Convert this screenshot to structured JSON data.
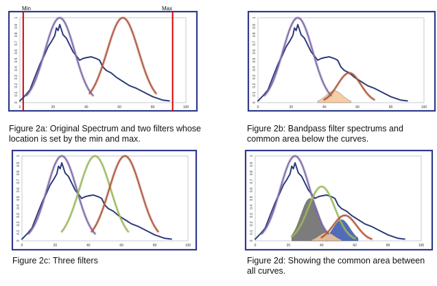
{
  "colors": {
    "frame": "#2e3a8c",
    "spectrum": "#2b3a7a",
    "filter_left": "#7f6aa8",
    "filter_middle": "#9ab85a",
    "filter_right": "#b0573c",
    "limit_line": "#d40000",
    "area_orange": "#f4c79a",
    "area_gray": "#6a6a6a",
    "area_blue": "#3a58b0"
  },
  "chart_data": [
    {
      "type": "line",
      "panel": "2a",
      "caption": "Figure 2a: Original Spectrum and two filters whose location is set by the min and max.",
      "min_label": "Min",
      "max_label": "Max",
      "x_ticks": [
        "0",
        "20",
        "40",
        "60",
        "80",
        "100"
      ],
      "y_ticks": [
        "0",
        "0.1",
        "0.2",
        "0.3",
        "0.4",
        "0.5",
        "0.6",
        "0.7",
        "0.8",
        "0.9",
        "1"
      ],
      "xlim": [
        0,
        100
      ],
      "ylim": [
        0,
        1
      ],
      "limits": [
        2,
        92
      ],
      "series": [
        {
          "role": "spectrum",
          "x": [
            0,
            3,
            6,
            9,
            12,
            15,
            17,
            19,
            21,
            22,
            23,
            24,
            25,
            26,
            28,
            30,
            32,
            34,
            36,
            38,
            40,
            43,
            46,
            48,
            50,
            52,
            55,
            58,
            62,
            66,
            70,
            75,
            80,
            86,
            90
          ],
          "y": [
            0.02,
            0.08,
            0.15,
            0.3,
            0.45,
            0.57,
            0.66,
            0.72,
            0.79,
            0.88,
            0.85,
            0.92,
            0.86,
            0.8,
            0.76,
            0.68,
            0.6,
            0.55,
            0.5,
            0.52,
            0.53,
            0.54,
            0.52,
            0.5,
            0.42,
            0.38,
            0.35,
            0.3,
            0.25,
            0.2,
            0.17,
            0.12,
            0.07,
            0.03,
            0.02
          ]
        },
        {
          "role": "filter_left",
          "center": 24,
          "sigma": 9,
          "xrange": [
            4,
            44
          ]
        },
        {
          "role": "filter_right",
          "center": 62,
          "sigma": 9.5,
          "xrange": [
            42,
            82
          ]
        }
      ],
      "shaded": []
    },
    {
      "type": "line",
      "panel": "2b",
      "caption": "Figure 2b:  Bandpass filter spectrums and common area below the curves.",
      "x_ticks": [
        "0",
        "20",
        "40",
        "60",
        "80",
        "100"
      ],
      "y_ticks": [
        "0",
        "0.1",
        "0.2",
        "0.3",
        "0.4",
        "0.5",
        "0.6",
        "0.7",
        "0.8",
        "0.9",
        "1"
      ],
      "xlim": [
        0,
        100
      ],
      "ylim": [
        0,
        1
      ],
      "series": [
        {
          "role": "spectrum",
          "x": [
            0,
            3,
            6,
            9,
            12,
            15,
            17,
            19,
            21,
            22,
            23,
            24,
            25,
            26,
            28,
            30,
            32,
            34,
            36,
            38,
            40,
            43,
            46,
            48,
            50,
            52,
            55,
            58,
            62,
            66,
            70,
            75,
            80,
            86,
            90
          ],
          "y": [
            0.02,
            0.08,
            0.15,
            0.3,
            0.45,
            0.57,
            0.66,
            0.72,
            0.79,
            0.88,
            0.85,
            0.92,
            0.86,
            0.8,
            0.76,
            0.68,
            0.6,
            0.55,
            0.5,
            0.52,
            0.53,
            0.54,
            0.52,
            0.5,
            0.42,
            0.38,
            0.35,
            0.3,
            0.25,
            0.2,
            0.17,
            0.12,
            0.07,
            0.03,
            0.02
          ]
        },
        {
          "role": "filter_left",
          "center": 24,
          "sigma": 9,
          "xrange": [
            4,
            44
          ]
        },
        {
          "role": "filter_right",
          "center": 55,
          "sigma": 7,
          "xrange": [
            40,
            70
          ],
          "peak": 0.35
        }
      ],
      "shaded": [
        {
          "role": "area_orange",
          "center": 46,
          "sigma": 5,
          "peak": 0.14,
          "xrange": [
            36,
            56
          ]
        }
      ]
    },
    {
      "type": "line",
      "panel": "2c",
      "caption": "Figure 2c: Three filters",
      "x_ticks": [
        "0",
        "20",
        "40",
        "60",
        "80",
        "100"
      ],
      "y_ticks": [
        "0",
        "0.1",
        "0.2",
        "0.3",
        "0.4",
        "0.5",
        "0.6",
        "0.7",
        "0.8",
        "0.9",
        "1"
      ],
      "xlim": [
        0,
        100
      ],
      "ylim": [
        0,
        1
      ],
      "series": [
        {
          "role": "spectrum",
          "x": [
            0,
            3,
            6,
            9,
            12,
            15,
            17,
            19,
            21,
            22,
            23,
            24,
            25,
            26,
            28,
            30,
            32,
            34,
            36,
            38,
            40,
            43,
            46,
            48,
            50,
            52,
            55,
            58,
            62,
            66,
            70,
            75,
            80,
            86,
            90
          ],
          "y": [
            0.02,
            0.08,
            0.15,
            0.3,
            0.45,
            0.57,
            0.66,
            0.72,
            0.79,
            0.88,
            0.85,
            0.92,
            0.86,
            0.8,
            0.76,
            0.68,
            0.6,
            0.55,
            0.5,
            0.52,
            0.53,
            0.54,
            0.52,
            0.5,
            0.42,
            0.38,
            0.35,
            0.3,
            0.25,
            0.2,
            0.17,
            0.12,
            0.07,
            0.03,
            0.02
          ]
        },
        {
          "role": "filter_left",
          "center": 24,
          "sigma": 9,
          "xrange": [
            4,
            44
          ]
        },
        {
          "role": "filter_middle",
          "center": 44,
          "sigma": 9.5,
          "xrange": [
            24,
            64
          ]
        },
        {
          "role": "filter_right",
          "center": 62,
          "sigma": 9.5,
          "xrange": [
            42,
            82
          ]
        }
      ],
      "shaded": []
    },
    {
      "type": "line",
      "panel": "2d",
      "caption": "Figure 2d: Showing the common area between all curves.",
      "x_ticks": [
        "0",
        "20",
        "40",
        "60",
        "80",
        "100"
      ],
      "y_ticks": [
        "0",
        "0.1",
        "0.2",
        "0.3",
        "0.4",
        "0.5",
        "0.6",
        "0.7",
        "0.8",
        "0.9",
        "1"
      ],
      "xlim": [
        0,
        100
      ],
      "ylim": [
        0,
        1
      ],
      "series": [
        {
          "role": "spectrum",
          "x": [
            0,
            3,
            6,
            9,
            12,
            15,
            17,
            19,
            21,
            22,
            23,
            24,
            25,
            26,
            28,
            30,
            32,
            34,
            36,
            38,
            40,
            43,
            46,
            48,
            50,
            52,
            55,
            58,
            62,
            66,
            70,
            75,
            80,
            86,
            90
          ],
          "y": [
            0.02,
            0.08,
            0.15,
            0.3,
            0.45,
            0.57,
            0.66,
            0.72,
            0.79,
            0.88,
            0.85,
            0.92,
            0.86,
            0.8,
            0.76,
            0.68,
            0.6,
            0.55,
            0.5,
            0.52,
            0.53,
            0.54,
            0.52,
            0.5,
            0.42,
            0.38,
            0.35,
            0.3,
            0.25,
            0.2,
            0.17,
            0.12,
            0.07,
            0.03,
            0.02
          ]
        },
        {
          "role": "filter_left",
          "center": 24,
          "sigma": 9,
          "xrange": [
            4,
            44
          ]
        },
        {
          "role": "filter_middle",
          "center": 40,
          "sigma": 8,
          "xrange": [
            22,
            60
          ],
          "peak": 0.64
        },
        {
          "role": "filter_right",
          "center": 54,
          "sigma": 7,
          "xrange": [
            40,
            70
          ],
          "peak": 0.3
        }
      ],
      "shaded": [
        {
          "role": "area_gray",
          "center": 33,
          "sigma": 5.5,
          "peak": 0.5,
          "xrange": [
            22,
            44
          ]
        },
        {
          "role": "area_blue",
          "center": 52,
          "sigma": 5,
          "peak": 0.25,
          "xrange": [
            42,
            62
          ]
        },
        {
          "role": "area_orange",
          "center": 43,
          "sigma": 4.5,
          "peak": 0.1,
          "xrange": [
            34,
            52
          ]
        }
      ]
    }
  ]
}
